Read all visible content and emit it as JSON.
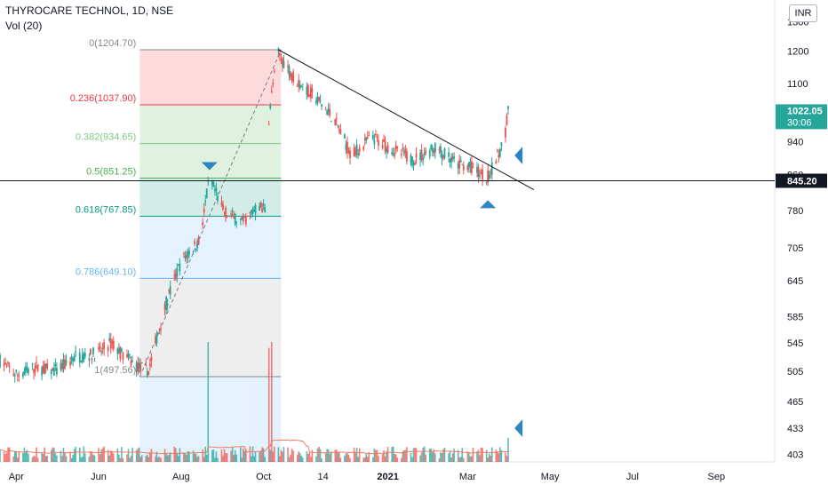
{
  "header": {
    "title": "THYROCARE TECHNOL, 1D, NSE",
    "volume_label": "Vol (20)",
    "currency_button": "INR"
  },
  "chart_data": {
    "type": "candlestick",
    "symbol": "THYROCARE TECHNOL",
    "interval": "1D",
    "exchange": "NSE",
    "x_tick_labels": [
      "Apr",
      "Jun",
      "Aug",
      "Oct",
      "14",
      "2021",
      "Mar",
      "May",
      "Jul",
      "Sep"
    ],
    "y_tick_labels": [
      "403",
      "433",
      "465",
      "505",
      "545",
      "585",
      "645",
      "705",
      "780",
      "860",
      "940",
      "1100",
      "1200",
      "1300"
    ],
    "price_scale": "log",
    "last_price": {
      "label": "1022.05",
      "countdown": "30:06",
      "value": 1022.05,
      "color": "#26a69a"
    },
    "horizontal_level": {
      "label": "845.20",
      "value": 845.2
    },
    "fibonacci": [
      {
        "ratio": "0",
        "label": "0(1204.70)",
        "price": 1204.7,
        "color": "#888888"
      },
      {
        "ratio": "0.236",
        "label": "0.236(1037.90)",
        "price": 1037.9,
        "color": "#f23645"
      },
      {
        "ratio": "0.382",
        "label": "0.382(934.65)",
        "price": 934.65,
        "color": "#81c784"
      },
      {
        "ratio": "0.5",
        "label": "0.5(851.25)",
        "price": 851.25,
        "color": "#4caf50"
      },
      {
        "ratio": "0.618",
        "label": "0.618(767.85)",
        "price": 767.85,
        "color": "#089981"
      },
      {
        "ratio": "0.786",
        "label": "0.786(649.10)",
        "price": 649.1,
        "color": "#64b5f6"
      },
      {
        "ratio": "1",
        "label": "1(497.56)",
        "price": 497.56,
        "color": "#888888"
      }
    ],
    "fib_zone_colors": [
      "#f23645",
      "#4caf50",
      "#4caf50",
      "#089981",
      "#64b5f6",
      "#9e9e9e"
    ],
    "trendline": {
      "from": {
        "date": "2020-10-12",
        "price": 1204.7
      },
      "to": {
        "date": "2021-04-19",
        "price": 825
      }
    },
    "price_path": [
      {
        "date": "2020-03-20",
        "price": 520
      },
      {
        "date": "2020-04-01",
        "price": 500
      },
      {
        "date": "2020-04-15",
        "price": 510
      },
      {
        "date": "2020-05-01",
        "price": 505
      },
      {
        "date": "2020-05-15",
        "price": 525
      },
      {
        "date": "2020-06-01",
        "price": 530
      },
      {
        "date": "2020-06-10",
        "price": 545
      },
      {
        "date": "2020-06-20",
        "price": 525
      },
      {
        "date": "2020-07-01",
        "price": 510
      },
      {
        "date": "2020-07-08",
        "price": 505
      },
      {
        "date": "2020-07-20",
        "price": 600
      },
      {
        "date": "2020-08-01",
        "price": 680
      },
      {
        "date": "2020-08-15",
        "price": 720
      },
      {
        "date": "2020-08-22",
        "price": 850
      },
      {
        "date": "2020-09-01",
        "price": 780
      },
      {
        "date": "2020-09-15",
        "price": 755
      },
      {
        "date": "2020-09-28",
        "price": 790
      },
      {
        "date": "2020-10-03",
        "price": 780
      },
      {
        "date": "2020-10-05",
        "price": 1000
      },
      {
        "date": "2020-10-08",
        "price": 1100
      },
      {
        "date": "2020-10-12",
        "price": 1190
      },
      {
        "date": "2020-10-25",
        "price": 1110
      },
      {
        "date": "2020-11-08",
        "price": 1060
      },
      {
        "date": "2020-11-22",
        "price": 1000
      },
      {
        "date": "2020-12-05",
        "price": 905
      },
      {
        "date": "2020-12-20",
        "price": 950
      },
      {
        "date": "2021-01-05",
        "price": 920
      },
      {
        "date": "2021-01-20",
        "price": 895
      },
      {
        "date": "2021-02-05",
        "price": 925
      },
      {
        "date": "2021-02-20",
        "price": 885
      },
      {
        "date": "2021-03-05",
        "price": 875
      },
      {
        "date": "2021-03-15",
        "price": 850
      },
      {
        "date": "2021-03-20",
        "price": 880
      },
      {
        "date": "2021-03-28",
        "price": 940
      },
      {
        "date": "2021-03-31",
        "price": 1022.05
      }
    ],
    "volume_spikes": [
      {
        "date": "2020-08-21",
        "volume": 100
      },
      {
        "date": "2020-10-05",
        "volume": 95
      },
      {
        "date": "2020-10-07",
        "volume": 100
      },
      {
        "date": "2021-03-31",
        "volume": 20
      }
    ],
    "markers": [
      {
        "type": "arrow-down",
        "date": "2020-08-22",
        "color": "#2e86c1"
      },
      {
        "type": "arrow-up",
        "date": "2021-03-16",
        "color": "#2e86c1"
      },
      {
        "type": "arrow-left",
        "date": "2021-04-08",
        "color": "#2e86c1",
        "pane": "price"
      },
      {
        "type": "arrow-left",
        "date": "2021-04-08",
        "color": "#2e86c1",
        "pane": "volume"
      }
    ],
    "colors": {
      "up": "#26a69a",
      "down": "#ef5350",
      "volume_ma": "#f57c5c",
      "level_line": "#131722",
      "trendline": "#131722"
    }
  }
}
